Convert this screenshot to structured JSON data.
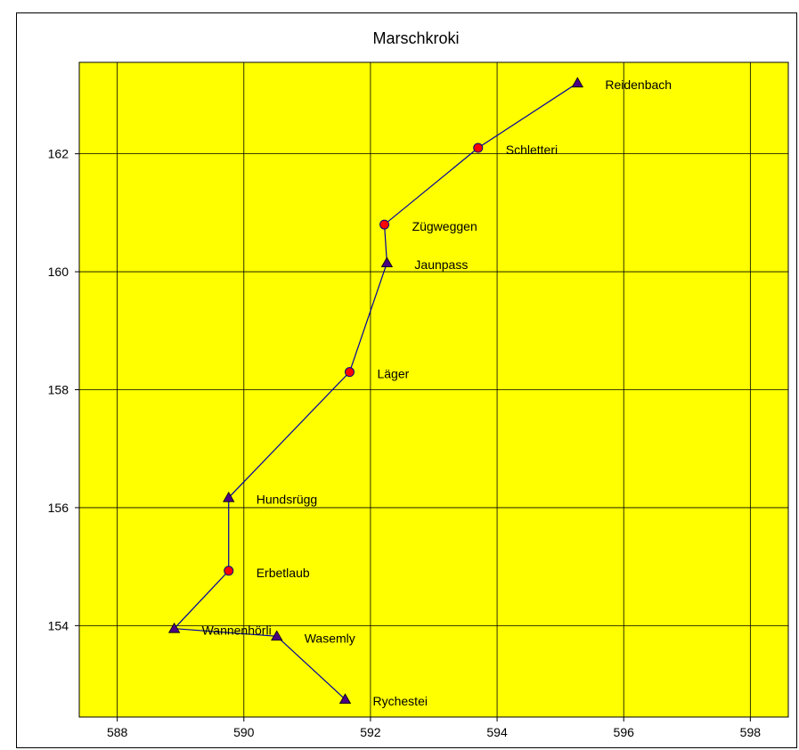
{
  "chart_data": {
    "type": "scatter",
    "title": "Marschkroki",
    "xlabel": "",
    "ylabel": "",
    "xlim": [
      587.4,
      598.6
    ],
    "ylim": [
      152.45,
      163.55
    ],
    "xticks": [
      "588",
      "590",
      "592",
      "594",
      "596",
      "598"
    ],
    "yticks": [
      "154",
      "156",
      "158",
      "160",
      "162"
    ],
    "xtick_values": [
      588,
      590,
      592,
      594,
      596,
      598
    ],
    "ytick_values": [
      154,
      156,
      158,
      160,
      162
    ],
    "grid": true,
    "plot_background": "#ffff00",
    "line_color": "#0000a0",
    "circle_marker_color": "#ff0000",
    "triangle_marker_color": "#4b0082",
    "points": [
      {
        "name": "Reidenbach",
        "x": 595.27,
        "y": 163.2,
        "marker": "triangle"
      },
      {
        "name": "Schletteri",
        "x": 593.7,
        "y": 162.1,
        "marker": "circle"
      },
      {
        "name": "Zügweggen",
        "x": 592.22,
        "y": 160.8,
        "marker": "circle"
      },
      {
        "name": "Jaunpass",
        "x": 592.26,
        "y": 160.15,
        "marker": "triangle"
      },
      {
        "name": "Läger",
        "x": 591.67,
        "y": 158.3,
        "marker": "circle"
      },
      {
        "name": "Hundsrügg",
        "x": 589.76,
        "y": 156.17,
        "marker": "triangle"
      },
      {
        "name": "Erbetlaub",
        "x": 589.76,
        "y": 154.93,
        "marker": "circle"
      },
      {
        "name": "Wannenhörli",
        "x": 588.9,
        "y": 153.95,
        "marker": "triangle"
      },
      {
        "name": "Wasemly",
        "x": 590.52,
        "y": 153.82,
        "marker": "triangle"
      },
      {
        "name": "Rychestei",
        "x": 591.6,
        "y": 152.75,
        "marker": "triangle"
      }
    ]
  }
}
